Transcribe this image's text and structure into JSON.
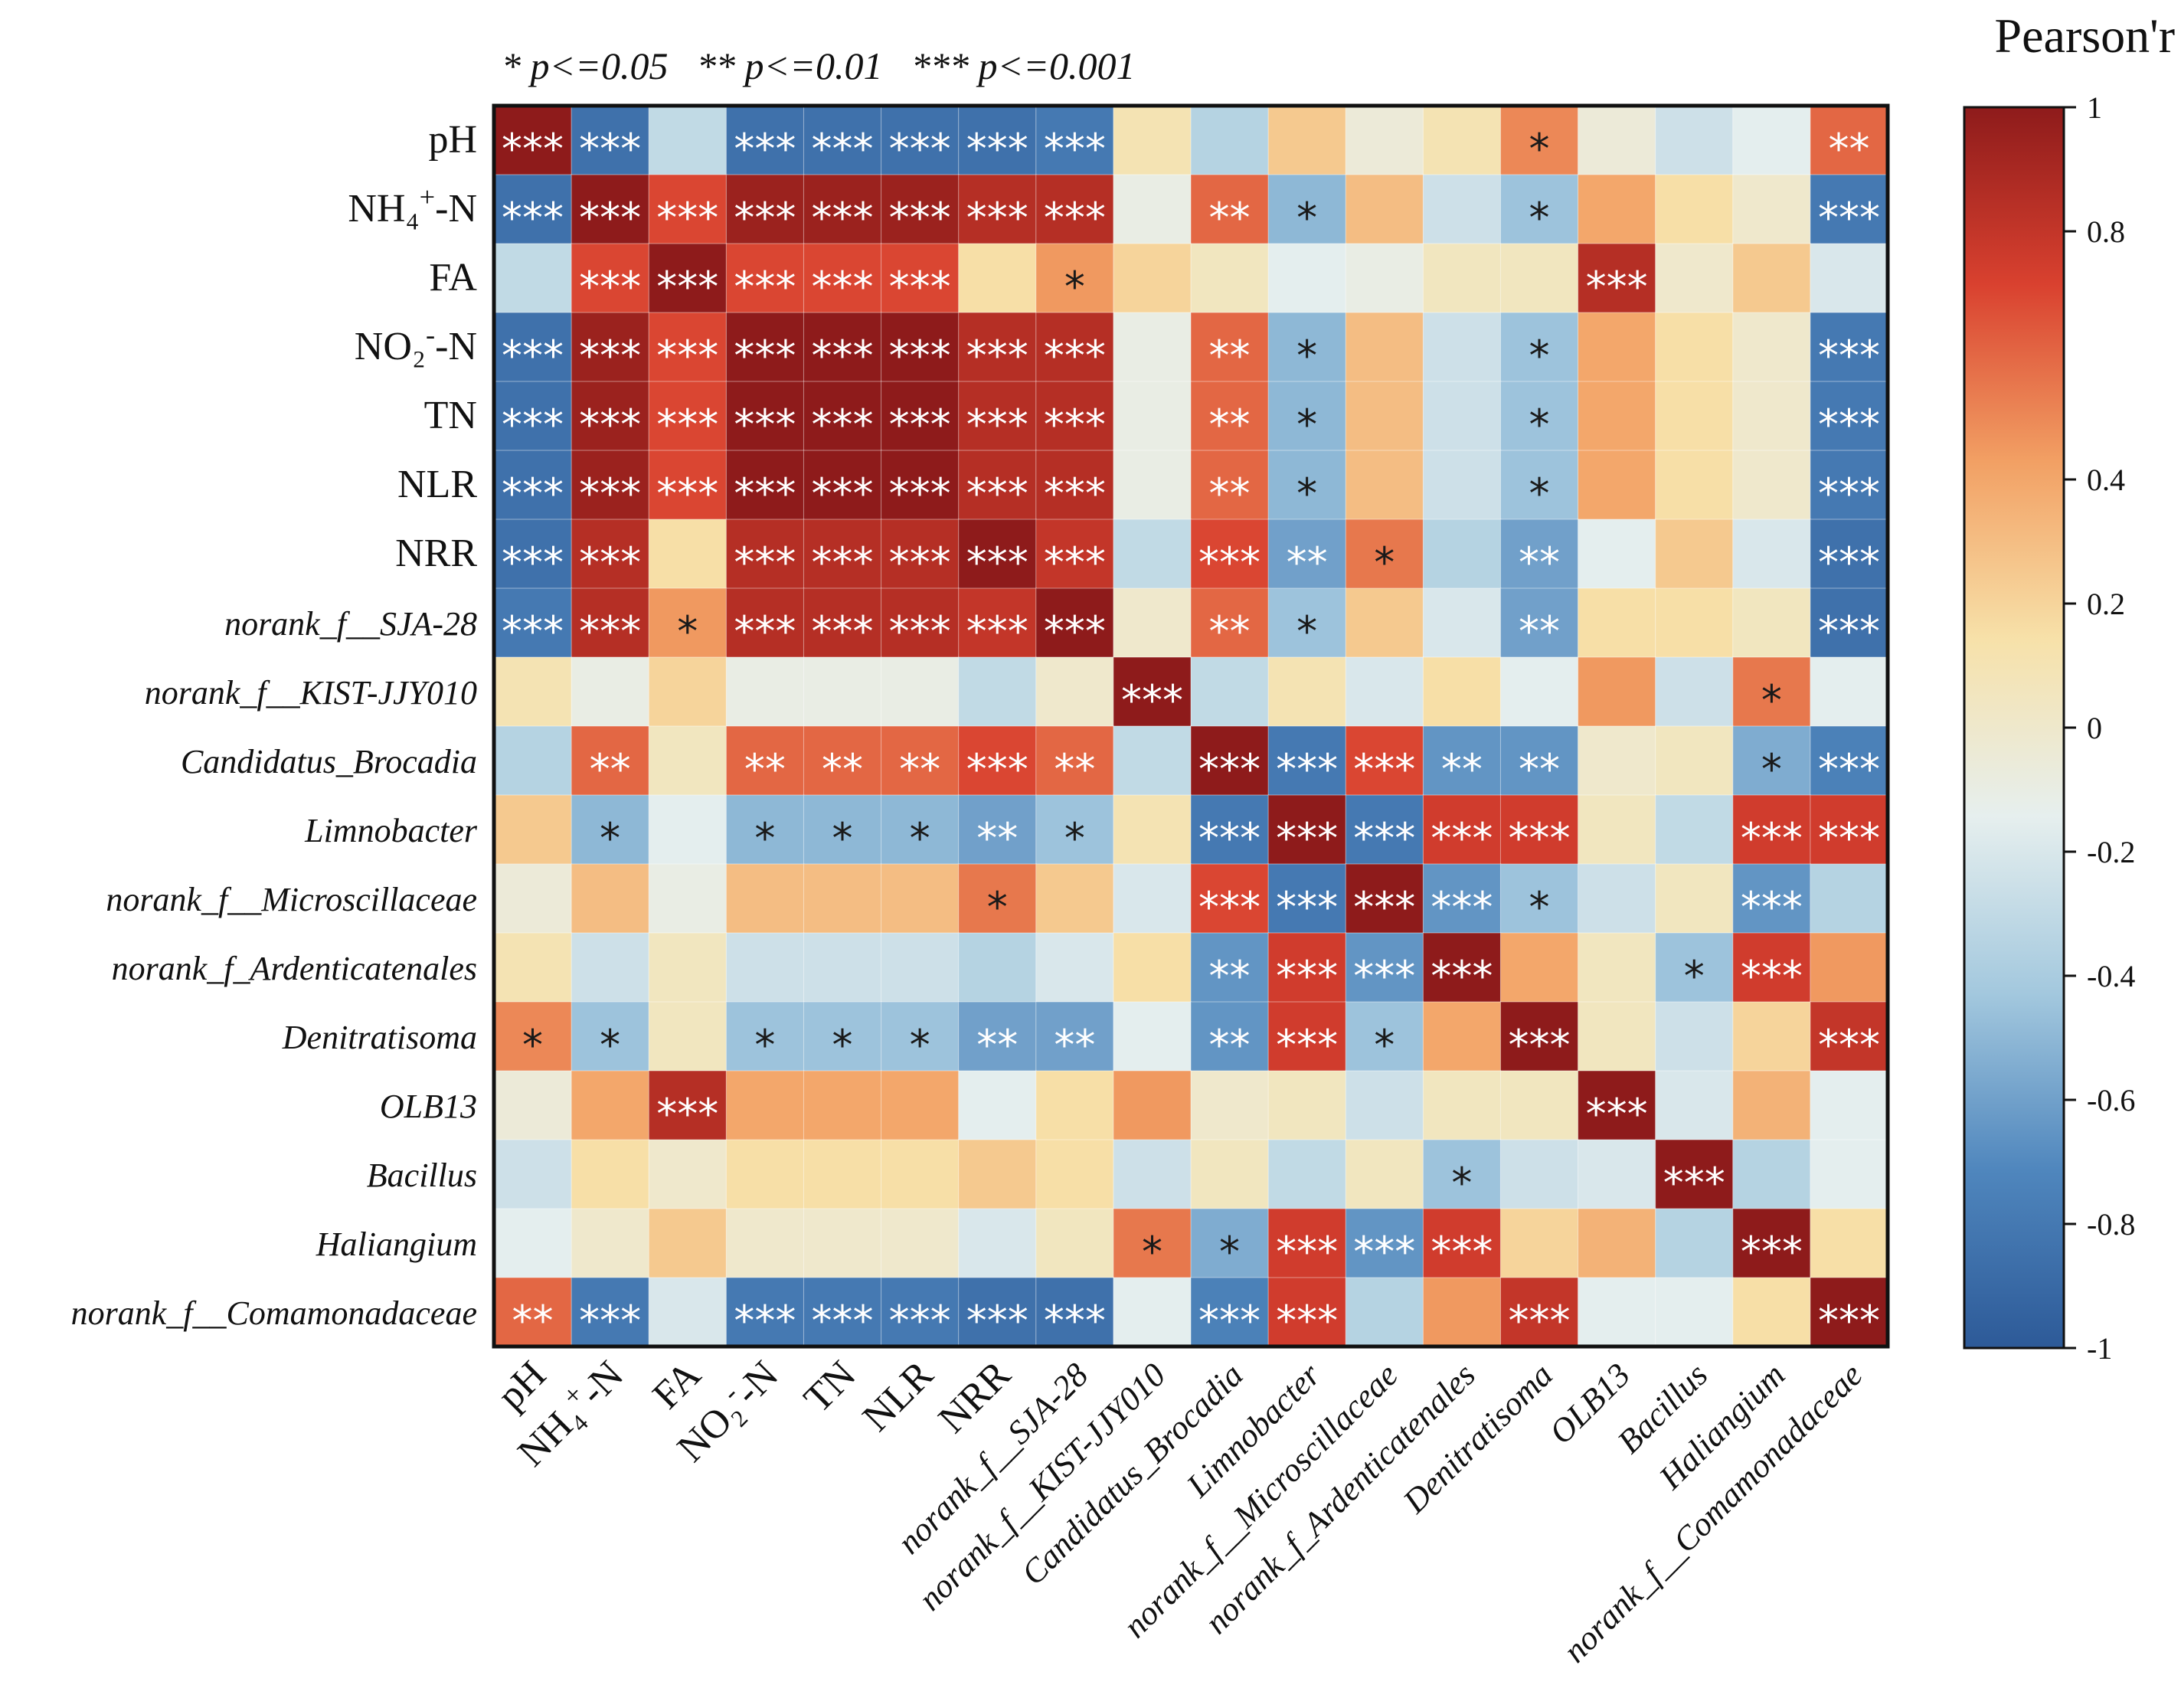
{
  "chart_data": {
    "type": "heatmap",
    "title": "Pearson'r",
    "legend_text": "* p<=0.05   ** p<=0.01   *** p<=0.001",
    "colorbar": {
      "min": -1,
      "max": 1,
      "ticks": [
        1,
        0.8,
        0.4,
        0.2,
        0,
        -0.2,
        -0.4,
        -0.6,
        -0.8,
        -1
      ],
      "tick_labels": [
        "1",
        "0.8",
        "0.4",
        "0.2",
        "0",
        "-0.2",
        "-0.4",
        "-0.6",
        "-0.8",
        "-1"
      ],
      "stops": [
        "#2d5a98",
        "#4f86bd",
        "#a3c8de",
        "#e6efee",
        "#f7e1a9",
        "#f2a064",
        "#d9412f",
        "#8e1b1b"
      ]
    },
    "labels": [
      {
        "text": "pH",
        "italic": false
      },
      {
        "text": "NH4+-N",
        "italic": false
      },
      {
        "text": "FA",
        "italic": false
      },
      {
        "text": "NO2--N",
        "italic": false
      },
      {
        "text": "TN",
        "italic": false
      },
      {
        "text": "NLR",
        "italic": false
      },
      {
        "text": "NRR",
        "italic": false
      },
      {
        "text": "norank_f__SJA-28",
        "italic": true
      },
      {
        "text": "norank_f__KIST-JJY010",
        "italic": true
      },
      {
        "text": "Candidatus_Brocadia",
        "italic": true
      },
      {
        "text": "Limnobacter",
        "italic": true
      },
      {
        "text": "norank_f__Microscillaceae",
        "italic": true
      },
      {
        "text": "norank_f_Ardenticatenales",
        "italic": true
      },
      {
        "text": "Denitratisoma",
        "italic": true
      },
      {
        "text": "OLB13",
        "italic": true
      },
      {
        "text": "Bacillus",
        "italic": true
      },
      {
        "text": "Haliangium",
        "italic": true
      },
      {
        "text": "norank_f__Comamonadaceae",
        "italic": true
      }
    ],
    "values": [
      [
        1.0,
        -0.85,
        -0.3,
        -0.85,
        -0.85,
        -0.85,
        -0.85,
        -0.8,
        0.1,
        -0.35,
        0.25,
        -0.05,
        0.1,
        0.5,
        -0.05,
        -0.25,
        -0.15,
        0.6
      ],
      [
        -0.85,
        1.0,
        0.7,
        0.95,
        0.95,
        0.95,
        0.85,
        0.85,
        -0.1,
        0.6,
        -0.5,
        0.3,
        -0.25,
        -0.45,
        0.4,
        0.15,
        0.0,
        -0.8
      ],
      [
        -0.3,
        0.7,
        1.0,
        0.7,
        0.7,
        0.7,
        0.15,
        0.45,
        0.2,
        0.05,
        -0.15,
        -0.1,
        0.05,
        0.05,
        0.85,
        0.0,
        0.25,
        -0.2
      ],
      [
        -0.85,
        0.95,
        0.7,
        1.0,
        1.0,
        1.0,
        0.85,
        0.85,
        -0.1,
        0.6,
        -0.5,
        0.3,
        -0.25,
        -0.45,
        0.4,
        0.15,
        0.0,
        -0.8
      ],
      [
        -0.85,
        0.95,
        0.7,
        1.0,
        1.0,
        1.0,
        0.85,
        0.85,
        -0.1,
        0.6,
        -0.5,
        0.3,
        -0.25,
        -0.45,
        0.4,
        0.15,
        0.0,
        -0.8
      ],
      [
        -0.85,
        0.95,
        0.7,
        1.0,
        1.0,
        1.0,
        0.85,
        0.85,
        -0.1,
        0.6,
        -0.5,
        0.3,
        -0.25,
        -0.45,
        0.4,
        0.15,
        0.0,
        -0.8
      ],
      [
        -0.85,
        0.85,
        0.15,
        0.85,
        0.85,
        0.85,
        1.0,
        0.8,
        -0.3,
        0.7,
        -0.6,
        0.55,
        -0.35,
        -0.6,
        -0.15,
        0.25,
        -0.2,
        -0.85
      ],
      [
        -0.8,
        0.85,
        0.45,
        0.85,
        0.85,
        0.85,
        0.8,
        1.0,
        0.0,
        0.6,
        -0.45,
        0.25,
        -0.2,
        -0.6,
        0.15,
        0.15,
        0.05,
        -0.85
      ],
      [
        0.1,
        -0.1,
        0.2,
        -0.1,
        -0.1,
        -0.1,
        -0.3,
        0.0,
        1.0,
        -0.3,
        0.1,
        -0.2,
        0.15,
        -0.15,
        0.45,
        -0.25,
        0.55,
        -0.15
      ],
      [
        -0.35,
        0.6,
        0.05,
        0.6,
        0.6,
        0.6,
        0.7,
        0.6,
        -0.3,
        1.0,
        -0.8,
        0.7,
        -0.65,
        -0.65,
        0.0,
        0.05,
        -0.55,
        -0.75
      ],
      [
        0.25,
        -0.5,
        -0.15,
        -0.5,
        -0.5,
        -0.5,
        -0.6,
        -0.45,
        0.1,
        -0.8,
        1.0,
        -0.8,
        0.75,
        0.75,
        0.05,
        -0.3,
        0.75,
        0.75
      ],
      [
        -0.05,
        0.3,
        -0.1,
        0.3,
        0.3,
        0.3,
        0.55,
        0.25,
        -0.2,
        0.7,
        -0.8,
        1.0,
        -0.65,
        -0.45,
        -0.25,
        0.05,
        -0.65,
        -0.35
      ],
      [
        0.1,
        -0.25,
        0.05,
        -0.25,
        -0.25,
        -0.25,
        -0.35,
        -0.2,
        0.15,
        -0.65,
        0.75,
        -0.65,
        1.0,
        0.4,
        0.05,
        -0.45,
        0.75,
        0.45
      ],
      [
        0.5,
        -0.45,
        0.05,
        -0.45,
        -0.45,
        -0.45,
        -0.6,
        -0.6,
        -0.15,
        -0.65,
        0.75,
        -0.45,
        0.4,
        1.0,
        0.05,
        -0.25,
        0.2,
        0.8
      ],
      [
        -0.05,
        0.4,
        0.85,
        0.4,
        0.4,
        0.4,
        -0.15,
        0.15,
        0.45,
        0.0,
        0.05,
        -0.25,
        0.05,
        0.05,
        1.0,
        -0.2,
        0.35,
        -0.15
      ],
      [
        -0.25,
        0.15,
        0.0,
        0.15,
        0.15,
        0.15,
        0.25,
        0.15,
        -0.25,
        0.05,
        -0.3,
        0.05,
        -0.45,
        -0.25,
        -0.2,
        1.0,
        -0.35,
        -0.15
      ],
      [
        -0.15,
        0.0,
        0.25,
        0.0,
        0.0,
        0.0,
        -0.2,
        0.05,
        0.55,
        -0.55,
        0.75,
        -0.65,
        0.75,
        0.2,
        0.35,
        -0.35,
        1.0,
        0.15
      ],
      [
        0.6,
        -0.8,
        -0.2,
        -0.8,
        -0.8,
        -0.8,
        -0.85,
        -0.85,
        -0.15,
        -0.75,
        0.75,
        -0.35,
        0.45,
        0.8,
        -0.15,
        -0.15,
        0.15,
        1.0
      ]
    ],
    "significance": [
      [
        "***",
        "***",
        "",
        "***",
        "***",
        "***",
        "***",
        "***",
        "",
        "",
        "",
        "",
        "",
        "*",
        "",
        "",
        "",
        "**"
      ],
      [
        "***",
        "***",
        "***",
        "***",
        "***",
        "***",
        "***",
        "***",
        "",
        "**",
        "*",
        "",
        "",
        "*",
        "",
        "",
        "",
        "***"
      ],
      [
        "",
        "***",
        "***",
        "***",
        "***",
        "***",
        "",
        "*",
        "",
        "",
        "",
        "",
        "",
        "",
        "***",
        "",
        "",
        ""
      ],
      [
        "***",
        "***",
        "***",
        "***",
        "***",
        "***",
        "***",
        "***",
        "",
        "**",
        "*",
        "",
        "",
        "*",
        "",
        "",
        "",
        "***"
      ],
      [
        "***",
        "***",
        "***",
        "***",
        "***",
        "***",
        "***",
        "***",
        "",
        "**",
        "*",
        "",
        "",
        "*",
        "",
        "",
        "",
        "***"
      ],
      [
        "***",
        "***",
        "***",
        "***",
        "***",
        "***",
        "***",
        "***",
        "",
        "**",
        "*",
        "",
        "",
        "*",
        "",
        "",
        "",
        "***"
      ],
      [
        "***",
        "***",
        "",
        "***",
        "***",
        "***",
        "***",
        "***",
        "",
        "***",
        "**",
        "*",
        "",
        "**",
        "",
        "",
        "",
        "***"
      ],
      [
        "***",
        "***",
        "*",
        "***",
        "***",
        "***",
        "***",
        "***",
        "",
        "**",
        "*",
        "",
        "",
        "**",
        "",
        "",
        "",
        "***"
      ],
      [
        "",
        "",
        "",
        "",
        "",
        "",
        "",
        "",
        "***",
        "",
        "",
        "",
        "",
        "",
        "",
        "",
        "*",
        ""
      ],
      [
        "",
        "**",
        "",
        "**",
        "**",
        "**",
        "***",
        "**",
        "",
        "***",
        "***",
        "***",
        "**",
        "**",
        "",
        "",
        "*",
        "***"
      ],
      [
        "",
        "*",
        "",
        "*",
        "*",
        "*",
        "**",
        "*",
        "",
        "***",
        "***",
        "***",
        "***",
        "***",
        "",
        "",
        "***",
        "***"
      ],
      [
        "",
        "",
        "",
        "",
        "",
        "",
        "*",
        "",
        "",
        "***",
        "***",
        "***",
        "***",
        "*",
        "",
        "",
        "***",
        ""
      ],
      [
        "",
        "",
        "",
        "",
        "",
        "",
        "",
        "",
        "",
        "**",
        "***",
        "***",
        "***",
        "",
        "",
        "*",
        "***",
        ""
      ],
      [
        "*",
        "*",
        "",
        "*",
        "*",
        "*",
        "**",
        "**",
        "",
        "**",
        "***",
        "*",
        "",
        "***",
        "",
        "",
        "",
        "***"
      ],
      [
        "",
        "",
        "***",
        "",
        "",
        "",
        "",
        "",
        "",
        "",
        "",
        "",
        "",
        "",
        "***",
        "",
        "",
        ""
      ],
      [
        "",
        "",
        "",
        "",
        "",
        "",
        "",
        "",
        "",
        "",
        "",
        "",
        "*",
        "",
        "",
        "***",
        "",
        ""
      ],
      [
        "",
        "",
        "",
        "",
        "",
        "",
        "",
        "",
        "*",
        "*",
        "***",
        "***",
        "***",
        "",
        "",
        "",
        "***",
        ""
      ],
      [
        "**",
        "***",
        "",
        "***",
        "***",
        "***",
        "***",
        "***",
        "",
        "***",
        "***",
        "",
        "",
        "***",
        "",
        "",
        "",
        "***"
      ]
    ]
  }
}
